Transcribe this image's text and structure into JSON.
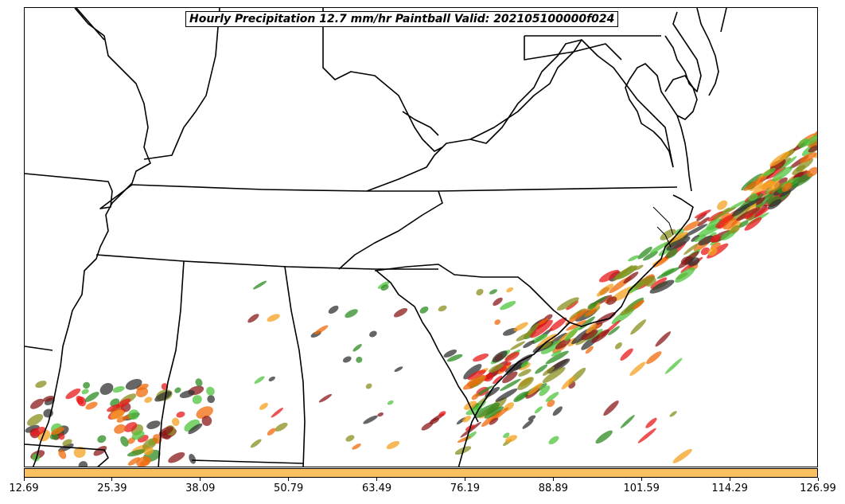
{
  "title": "Hourly Precipitation 12.7 mm/hr Paintball Valid: 202105100000f024",
  "colorbar": {
    "color": "#fdc061",
    "ticks": [
      "12.69",
      "25.39",
      "38.09",
      "50.79",
      "63.49",
      "76.19",
      "88.89",
      "101.59",
      "114.29",
      "126.99"
    ]
  },
  "paintball_colors": [
    "#f4a11f",
    "#e8181a",
    "#8b1a1a",
    "#2e8b22",
    "#4fc43c",
    "#8a8f1e",
    "#333333",
    "#f06a0a"
  ]
}
